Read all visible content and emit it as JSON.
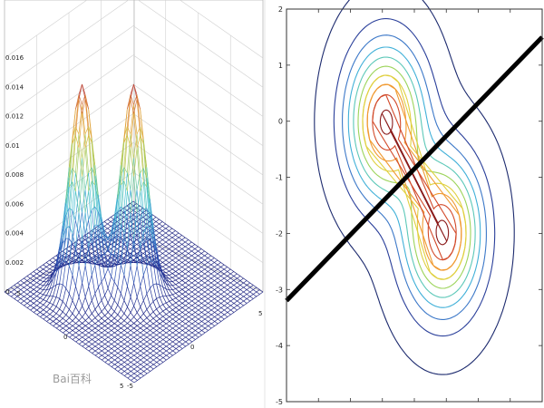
{
  "watermark": "Bai百科",
  "colors": {
    "mesh_low": "#1a2080",
    "mesh_high": "#a8203a",
    "separator": "#000000",
    "contour_ramp": [
      "#1c2a6e",
      "#2a3f9a",
      "#3c78c8",
      "#40b0d8",
      "#5cc8b8",
      "#9cd45a",
      "#e0d040",
      "#f09a32",
      "#d24a2a",
      "#8a1a1a"
    ]
  },
  "chart_data": [
    {
      "type": "surface",
      "title": "",
      "xlabel": "",
      "ylabel": "",
      "zlabel": "",
      "xlim": [
        -5,
        5
      ],
      "ylim": [
        -5,
        5
      ],
      "zlim": [
        0,
        0.016
      ],
      "ztick_labels": [
        "0",
        "0.002",
        "0.004",
        "0.006",
        "0.008",
        "0.01",
        "0.012",
        "0.014",
        "0.016"
      ],
      "x_tick_labels": [
        "-5",
        "0",
        "5"
      ],
      "y_tick_labels": [
        "5",
        "0",
        "-5"
      ],
      "peaks": [
        {
          "x": 0,
          "y": 0,
          "z": 0.0142
        },
        {
          "x": 2,
          "y": -2,
          "z": 0.0142
        }
      ],
      "grid": true
    },
    {
      "type": "contour",
      "title": "",
      "xlabel": "",
      "ylabel": "",
      "xlim": [
        -3.5,
        5.5
      ],
      "ylim": [
        -5,
        2
      ],
      "yticks": [
        2,
        1,
        0,
        -1,
        -2,
        -3,
        -4,
        -5
      ],
      "ytick_labels": [
        "2",
        "1",
        "0",
        "-1",
        "-2",
        "-3",
        "-4",
        "-5"
      ],
      "centers": [
        {
          "x": 0,
          "y": 0
        },
        {
          "x": 2,
          "y": -2
        }
      ],
      "contour_levels": 10,
      "decision_boundary": {
        "type": "line",
        "points": [
          [
            -3.5,
            -3.2
          ],
          [
            5.5,
            1.5
          ]
        ]
      },
      "grid": false
    }
  ]
}
